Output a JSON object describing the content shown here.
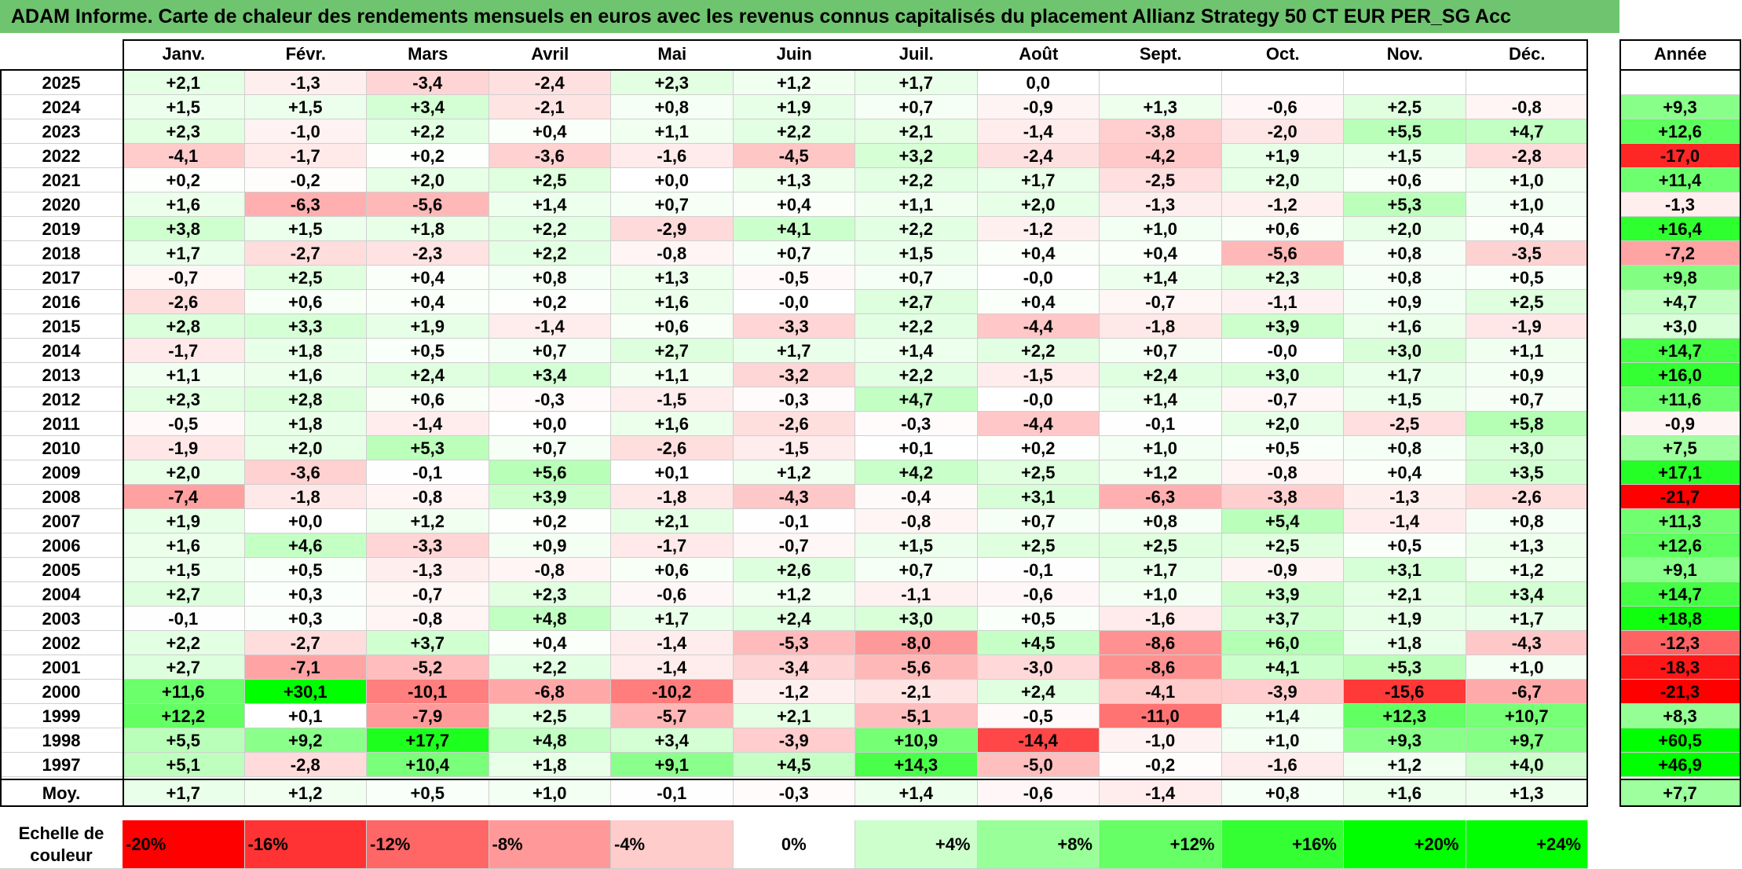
{
  "chart_data": {
    "type": "heatmap",
    "title": "ADAM Informe. Carte de chaleur des rendements mensuels en euros avec les revenus connus capitalisés du placement Allianz Strategy 50 CT EUR PER_SG Acc",
    "columns": [
      "Janv.",
      "Févr.",
      "Mars",
      "Avril",
      "Mai",
      "Juin",
      "Juil.",
      "Août",
      "Sept.",
      "Oct.",
      "Nov.",
      "Déc."
    ],
    "annual_header": "Année",
    "rows": [
      {
        "year": "2025",
        "values": [
          "+2,1",
          "-1,3",
          "-3,4",
          "-2,4",
          "+2,3",
          "+1,2",
          "+1,7",
          "0,0",
          "",
          "",
          "",
          ""
        ],
        "annual": ""
      },
      {
        "year": "2024",
        "values": [
          "+1,5",
          "+1,5",
          "+3,4",
          "-2,1",
          "+0,8",
          "+1,9",
          "+0,7",
          "-0,9",
          "+1,3",
          "-0,6",
          "+2,5",
          "-0,8"
        ],
        "annual": "+9,3"
      },
      {
        "year": "2023",
        "values": [
          "+2,3",
          "-1,0",
          "+2,2",
          "+0,4",
          "+1,1",
          "+2,2",
          "+2,1",
          "-1,4",
          "-3,8",
          "-2,0",
          "+5,5",
          "+4,7"
        ],
        "annual": "+12,6"
      },
      {
        "year": "2022",
        "values": [
          "-4,1",
          "-1,7",
          "+0,2",
          "-3,6",
          "-1,6",
          "-4,5",
          "+3,2",
          "-2,4",
          "-4,2",
          "+1,9",
          "+1,5",
          "-2,8"
        ],
        "annual": "-17,0"
      },
      {
        "year": "2021",
        "values": [
          "+0,2",
          "-0,2",
          "+2,0",
          "+2,5",
          "+0,0",
          "+1,3",
          "+2,2",
          "+1,7",
          "-2,5",
          "+2,0",
          "+0,6",
          "+1,0"
        ],
        "annual": "+11,4"
      },
      {
        "year": "2020",
        "values": [
          "+1,6",
          "-6,3",
          "-5,6",
          "+1,4",
          "+0,7",
          "+0,4",
          "+1,1",
          "+2,0",
          "-1,3",
          "-1,2",
          "+5,3",
          "+1,0"
        ],
        "annual": "-1,3"
      },
      {
        "year": "2019",
        "values": [
          "+3,8",
          "+1,5",
          "+1,8",
          "+2,2",
          "-2,9",
          "+4,1",
          "+2,2",
          "-1,2",
          "+1,0",
          "+0,6",
          "+2,0",
          "+0,4"
        ],
        "annual": "+16,4"
      },
      {
        "year": "2018",
        "values": [
          "+1,7",
          "-2,7",
          "-2,3",
          "+2,2",
          "-0,8",
          "+0,7",
          "+1,5",
          "+0,4",
          "+0,4",
          "-5,6",
          "+0,8",
          "-3,5"
        ],
        "annual": "-7,2"
      },
      {
        "year": "2017",
        "values": [
          "-0,7",
          "+2,5",
          "+0,4",
          "+0,8",
          "+1,3",
          "-0,5",
          "+0,7",
          "-0,0",
          "+1,4",
          "+2,3",
          "+0,8",
          "+0,5"
        ],
        "annual": "+9,8"
      },
      {
        "year": "2016",
        "values": [
          "-2,6",
          "+0,6",
          "+0,4",
          "+0,2",
          "+1,6",
          "-0,0",
          "+2,7",
          "+0,4",
          "-0,7",
          "-1,1",
          "+0,9",
          "+2,5"
        ],
        "annual": "+4,7"
      },
      {
        "year": "2015",
        "values": [
          "+2,8",
          "+3,3",
          "+1,9",
          "-1,4",
          "+0,6",
          "-3,3",
          "+2,2",
          "-4,4",
          "-1,8",
          "+3,9",
          "+1,6",
          "-1,9"
        ],
        "annual": "+3,0"
      },
      {
        "year": "2014",
        "values": [
          "-1,7",
          "+1,8",
          "+0,5",
          "+0,7",
          "+2,7",
          "+1,7",
          "+1,4",
          "+2,2",
          "+0,7",
          "-0,0",
          "+3,0",
          "+1,1"
        ],
        "annual": "+14,7"
      },
      {
        "year": "2013",
        "values": [
          "+1,1",
          "+1,6",
          "+2,4",
          "+3,4",
          "+1,1",
          "-3,2",
          "+2,2",
          "-1,5",
          "+2,4",
          "+3,0",
          "+1,7",
          "+0,9"
        ],
        "annual": "+16,0"
      },
      {
        "year": "2012",
        "values": [
          "+2,3",
          "+2,8",
          "+0,6",
          "-0,3",
          "-1,5",
          "-0,3",
          "+4,7",
          "-0,0",
          "+1,4",
          "-0,7",
          "+1,5",
          "+0,7"
        ],
        "annual": "+11,6"
      },
      {
        "year": "2011",
        "values": [
          "-0,5",
          "+1,8",
          "-1,4",
          "+0,0",
          "+1,6",
          "-2,6",
          "-0,3",
          "-4,4",
          "-0,1",
          "+2,0",
          "-2,5",
          "+5,8"
        ],
        "annual": "-0,9"
      },
      {
        "year": "2010",
        "values": [
          "-1,9",
          "+2,0",
          "+5,3",
          "+0,7",
          "-2,6",
          "-1,5",
          "+0,1",
          "+0,2",
          "+1,0",
          "+0,5",
          "+0,8",
          "+3,0"
        ],
        "annual": "+7,5"
      },
      {
        "year": "2009",
        "values": [
          "+2,0",
          "-3,6",
          "-0,1",
          "+5,6",
          "+0,1",
          "+1,2",
          "+4,2",
          "+2,5",
          "+1,2",
          "-0,8",
          "+0,4",
          "+3,5"
        ],
        "annual": "+17,1"
      },
      {
        "year": "2008",
        "values": [
          "-7,4",
          "-1,8",
          "-0,8",
          "+3,9",
          "-1,8",
          "-4,3",
          "-0,4",
          "+3,1",
          "-6,3",
          "-3,8",
          "-1,3",
          "-2,6"
        ],
        "annual": "-21,7"
      },
      {
        "year": "2007",
        "values": [
          "+1,9",
          "+0,0",
          "+1,2",
          "+0,2",
          "+2,1",
          "-0,1",
          "-0,8",
          "+0,7",
          "+0,8",
          "+5,4",
          "-1,4",
          "+0,8"
        ],
        "annual": "+11,3"
      },
      {
        "year": "2006",
        "values": [
          "+1,6",
          "+4,6",
          "-3,3",
          "+0,9",
          "-1,7",
          "-0,7",
          "+1,5",
          "+2,5",
          "+2,5",
          "+2,5",
          "+0,5",
          "+1,3"
        ],
        "annual": "+12,6"
      },
      {
        "year": "2005",
        "values": [
          "+1,5",
          "+0,5",
          "-1,3",
          "-0,8",
          "+0,6",
          "+2,6",
          "+0,7",
          "-0,1",
          "+1,7",
          "-0,9",
          "+3,1",
          "+1,2"
        ],
        "annual": "+9,1"
      },
      {
        "year": "2004",
        "values": [
          "+2,7",
          "+0,3",
          "-0,7",
          "+2,3",
          "-0,6",
          "+1,2",
          "-1,1",
          "-0,6",
          "+1,0",
          "+3,9",
          "+2,1",
          "+3,4"
        ],
        "annual": "+14,7"
      },
      {
        "year": "2003",
        "values": [
          "-0,1",
          "+0,3",
          "-0,8",
          "+4,8",
          "+1,7",
          "+2,4",
          "+3,0",
          "+0,5",
          "-1,6",
          "+3,7",
          "+1,9",
          "+1,7"
        ],
        "annual": "+18,8"
      },
      {
        "year": "2002",
        "values": [
          "+2,2",
          "-2,7",
          "+3,7",
          "+0,4",
          "-1,4",
          "-5,3",
          "-8,0",
          "+4,5",
          "-8,6",
          "+6,0",
          "+1,8",
          "-4,3"
        ],
        "annual": "-12,3"
      },
      {
        "year": "2001",
        "values": [
          "+2,7",
          "-7,1",
          "-5,2",
          "+2,2",
          "-1,4",
          "-3,4",
          "-5,6",
          "-3,0",
          "-8,6",
          "+4,1",
          "+5,3",
          "+1,0"
        ],
        "annual": "-18,3"
      },
      {
        "year": "2000",
        "values": [
          "+11,6",
          "+30,1",
          "-10,1",
          "-6,8",
          "-10,2",
          "-1,2",
          "-2,1",
          "+2,4",
          "-4,1",
          "-3,9",
          "-15,6",
          "-6,7"
        ],
        "annual": "-21,3"
      },
      {
        "year": "1999",
        "values": [
          "+12,2",
          "+0,1",
          "-7,9",
          "+2,5",
          "-5,7",
          "+2,1",
          "-5,1",
          "-0,5",
          "-11,0",
          "+1,4",
          "+12,3",
          "+10,7"
        ],
        "annual": "+8,3"
      },
      {
        "year": "1998",
        "values": [
          "+5,5",
          "+9,2",
          "+17,7",
          "+4,8",
          "+3,4",
          "-3,9",
          "+10,9",
          "-14,4",
          "-1,0",
          "+1,0",
          "+9,3",
          "+9,7"
        ],
        "annual": "+60,5"
      },
      {
        "year": "1997",
        "values": [
          "+5,1",
          "-2,8",
          "+10,4",
          "+1,8",
          "+9,1",
          "+4,5",
          "+14,3",
          "-5,0",
          "-0,2",
          "-1,6",
          "+1,2",
          "+4,0"
        ],
        "annual": "+46,9"
      }
    ],
    "average": {
      "label": "Moy.",
      "values": [
        "+1,7",
        "+1,2",
        "+0,5",
        "+1,0",
        "-0,1",
        "-0,3",
        "+1,4",
        "-0,6",
        "-1,4",
        "+0,8",
        "+1,6",
        "+1,3"
      ],
      "annual": "+7,7"
    },
    "color_scale": {
      "label": "Echelle de couleur",
      "stops": [
        "-20%",
        "-16%",
        "-12%",
        "-8%",
        "-4%",
        "0%",
        "+4%",
        "+8%",
        "+12%",
        "+16%",
        "+20%",
        "+24%"
      ],
      "negative_color": "#ff0000",
      "neutral_color": "#ffffff",
      "positive_color": "#00ff00"
    }
  }
}
